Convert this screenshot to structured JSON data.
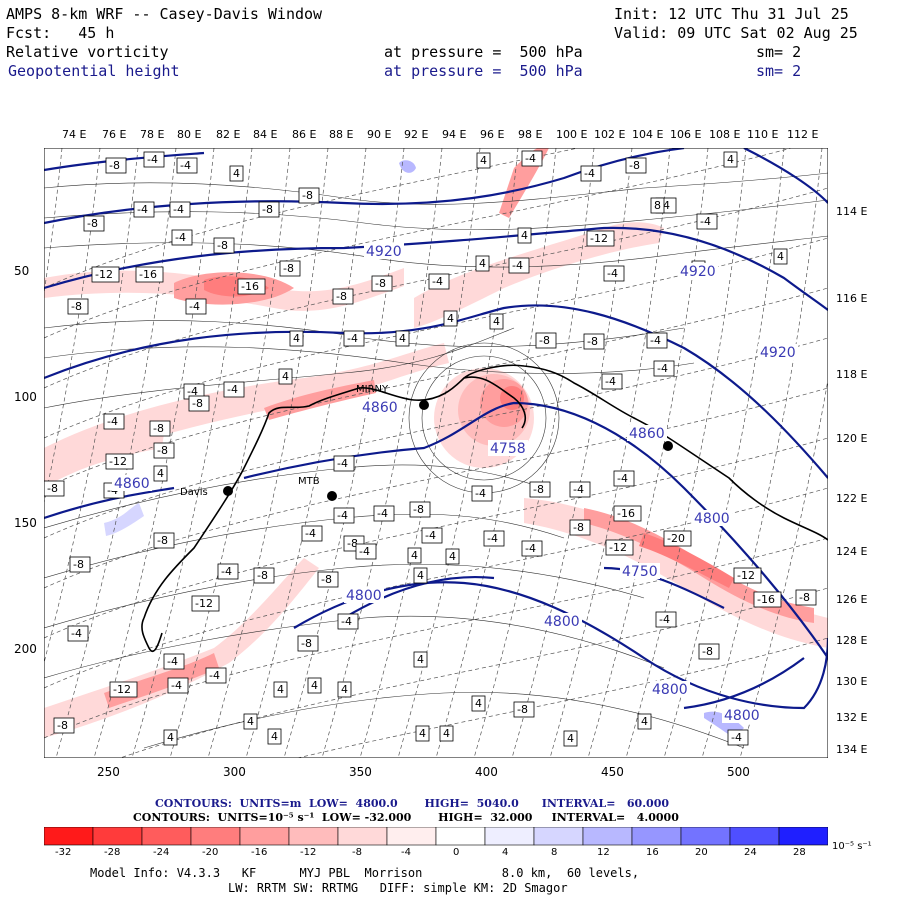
{
  "header": {
    "title": "AMPS 8-km WRF -- Casey-Davis Window",
    "init": "Init: 12 UTC Thu 31 Jul 25",
    "fcst": "Fcst:   45 h",
    "valid": "Valid: 09 UTC Sat 02 Aug 25",
    "field1": "Relative vorticity",
    "field2": "Geopotential height",
    "pressure1": "at pressure =  500 hPa",
    "pressure2": "at pressure =  500 hPa",
    "sm1": "sm= 2",
    "sm2": "sm= 2"
  },
  "lon_top": [
    "74 E",
    "76 E",
    "78 E",
    "80 E",
    "82 E",
    "84 E",
    "86 E",
    "88 E",
    "90 E",
    "92 E",
    "94 E",
    "96 E",
    "98 E",
    "100 E",
    "102 E",
    "104 E",
    "106 E",
    "108 E",
    "110 E",
    "112 E"
  ],
  "lon_right": [
    "114 E",
    "116 E",
    "118 E",
    "120 E",
    "122 E",
    "124 E",
    "126 E",
    "128 E",
    "130 E",
    "132 E",
    "134 E"
  ],
  "x_ticks": [
    "250",
    "300",
    "350",
    "400",
    "450",
    "500"
  ],
  "y_ticks": [
    "50",
    "100",
    "150",
    "200"
  ],
  "height_labels": [
    "4920",
    "4920",
    "4920",
    "4860",
    "4860",
    "4860",
    "4800",
    "4800",
    "4800",
    "4800",
    "4800",
    "4758",
    "4750"
  ],
  "station_labels": [
    "Davis",
    "MTB",
    "MIRNY"
  ],
  "contour_info": {
    "line1": "CONTOURS:  UNITS=m  LOW=  4800.0       HIGH=  5040.0      INTERVAL=   60.000",
    "line2": "CONTOURS:  UNITS=10⁻⁵ s⁻¹  LOW= -32.000       HIGH=  32.000     INTERVAL=   4.0000"
  },
  "colorbar": {
    "ticks": [
      "-32",
      "-28",
      "-24",
      "-20",
      "-16",
      "-12",
      "-8",
      "-4",
      "0",
      "4",
      "8",
      "12",
      "16",
      "20",
      "24",
      "28",
      "32"
    ],
    "unit": "10⁻⁵ s⁻¹",
    "colors": [
      "#ff1a1a",
      "#ff3b3b",
      "#ff5c5c",
      "#ff7d7d",
      "#ff9e9e",
      "#ffbcbc",
      "#ffd9d9",
      "#ffeeee",
      "#ffffff",
      "#ffffff",
      "#eeeeff",
      "#d6d6ff",
      "#b8b8ff",
      "#9696ff",
      "#7373ff",
      "#4f4fff",
      "#1f1fff"
    ]
  },
  "model_info": {
    "line1": "Model Info: V4.3.3   KF      MYJ PBL  Morrison           8.0 km,  60 levels,",
    "line2": "LW: RRTM SW: RRTMG   DIFF: simple KM: 2D Smagor"
  }
}
